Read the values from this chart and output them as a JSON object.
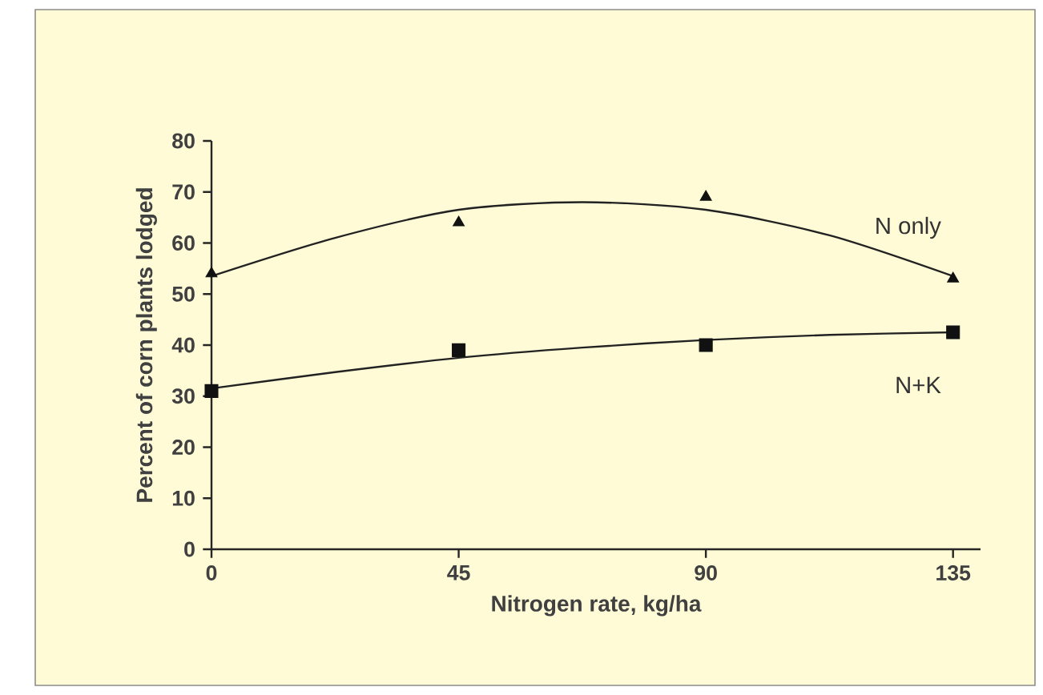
{
  "chart_data": {
    "type": "scatter",
    "xlabel": "Nitrogen rate, kg/ha",
    "ylabel": "Percent of corn plants lodged",
    "xlim": [
      0,
      140
    ],
    "ylim": [
      0,
      80
    ],
    "xticks": [
      0,
      45,
      90,
      135
    ],
    "yticks": [
      0,
      10,
      20,
      30,
      40,
      50,
      60,
      70,
      80
    ],
    "series": [
      {
        "marker": "triangle",
        "color": "#111111",
        "x": [
          0,
          45,
          90,
          135
        ],
        "values": [
          54,
          64,
          69,
          53
        ]
      },
      {
        "marker": "square",
        "color": "#111111",
        "x": [
          0,
          45,
          90,
          135
        ],
        "values": [
          31,
          39,
          40,
          42.5
        ]
      },
      {
        "type": "line",
        "name": "N only",
        "marker": "none",
        "color": "#222222",
        "x": [
          0,
          22.5,
          45,
          67.5,
          90,
          112.5,
          135
        ],
        "values": [
          53.5,
          61,
          66.5,
          68,
          66.5,
          61.5,
          53.5
        ]
      },
      {
        "type": "line",
        "name": "N+K",
        "marker": "none",
        "color": "#222222",
        "x": [
          0,
          22.5,
          45,
          67.5,
          90,
          112.5,
          135
        ],
        "values": [
          31.5,
          34.7,
          37.5,
          39.5,
          41,
          42,
          42.5
        ]
      }
    ]
  }
}
